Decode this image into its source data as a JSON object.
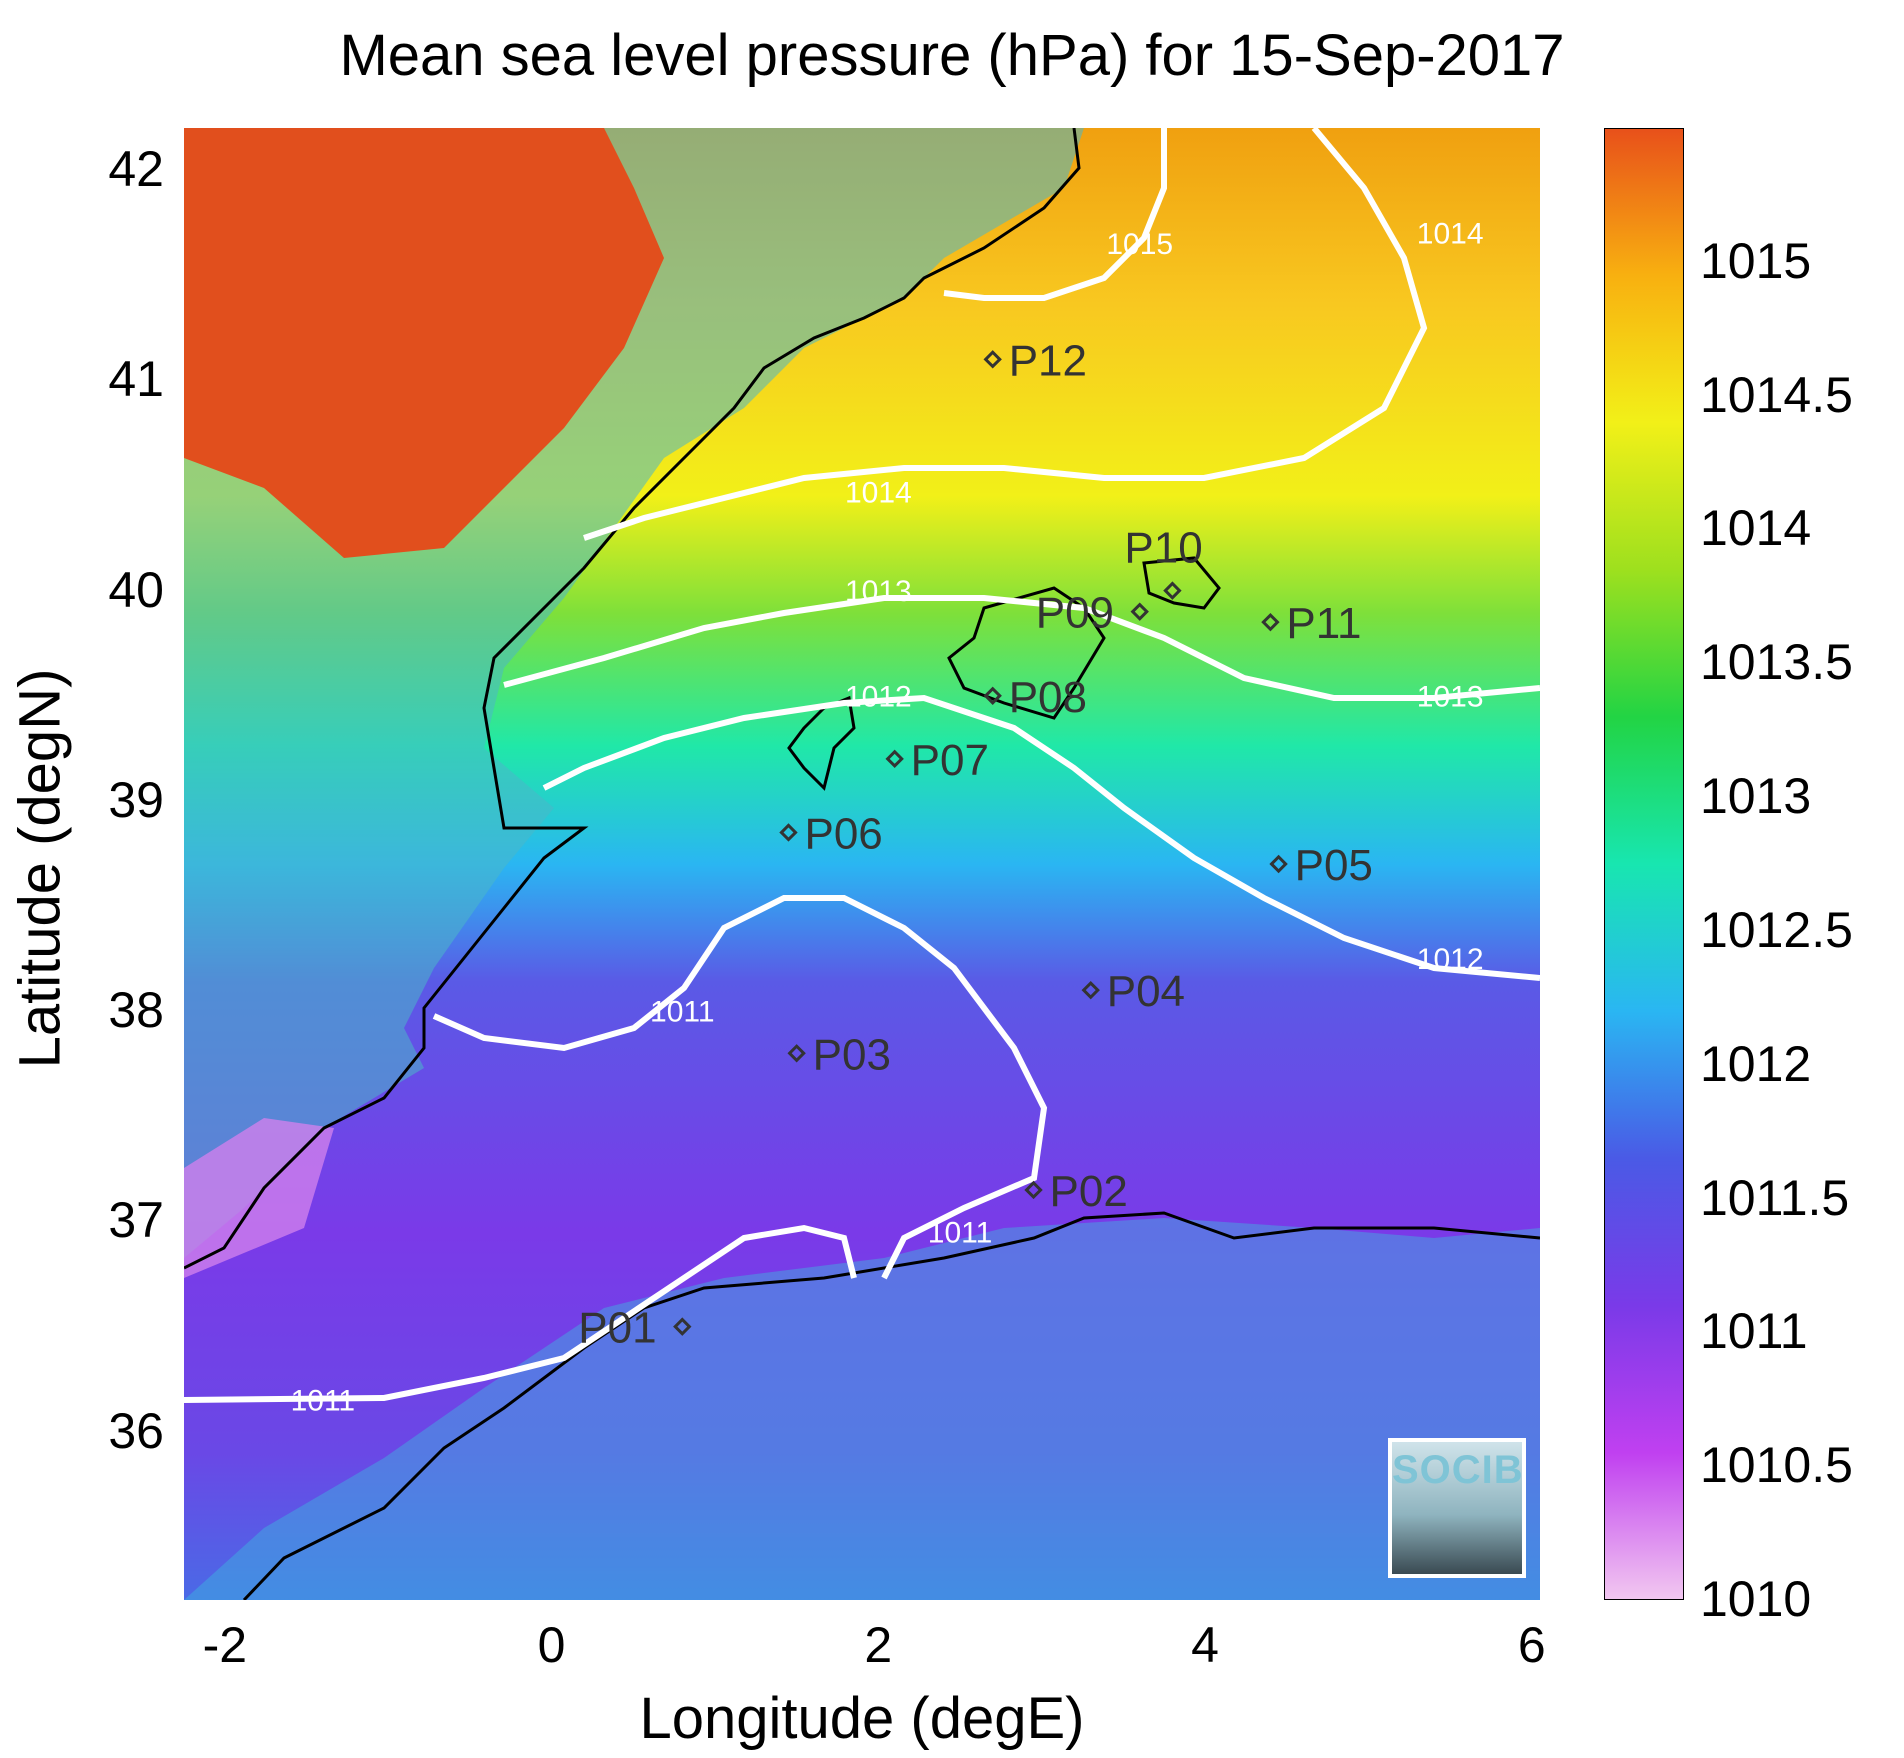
{
  "title": "Mean sea level pressure (hPa) for 15-Sep-2017",
  "chart_data": {
    "type": "heatmap",
    "title": "Mean sea level pressure (hPa) for 15-Sep-2017",
    "xlabel": "Longitude (degE)",
    "ylabel": "Latitude (degN)",
    "xlim": [
      -2.25,
      6.05
    ],
    "ylim": [
      35.2,
      42.2
    ],
    "xticks": [
      -2,
      0,
      2,
      4,
      6
    ],
    "yticks": [
      36,
      37,
      38,
      39,
      40,
      41,
      42
    ],
    "colorbar": {
      "range": [
        1010,
        1015.5
      ],
      "ticks": [
        1010,
        1010.5,
        1011,
        1011.5,
        1012,
        1012.5,
        1013,
        1013.5,
        1014,
        1014.5,
        1015
      ],
      "colors": [
        "#f2c8f0",
        "#c040f0",
        "#7a3ae8",
        "#4a5ae6",
        "#2ab6f2",
        "#18e6b0",
        "#22d444",
        "#9ee01e",
        "#f2f018",
        "#f8b010",
        "#e8501a"
      ]
    },
    "contour_levels": [
      1011,
      1012,
      1013,
      1014,
      1015
    ],
    "contour_labels": [
      {
        "text": "1011",
        "x": -1.4,
        "y": 36.1
      },
      {
        "text": "1011",
        "x": 0.8,
        "y": 37.95
      },
      {
        "text": "1011",
        "x": 2.5,
        "y": 36.9
      },
      {
        "text": "1012",
        "x": 2.0,
        "y": 39.45
      },
      {
        "text": "1012",
        "x": 5.5,
        "y": 38.2
      },
      {
        "text": "1013",
        "x": 2.0,
        "y": 39.95
      },
      {
        "text": "1013",
        "x": 5.5,
        "y": 39.45
      },
      {
        "text": "1014",
        "x": 2.0,
        "y": 40.42
      },
      {
        "text": "1014",
        "x": 5.5,
        "y": 41.65
      },
      {
        "text": "1015",
        "x": 3.6,
        "y": 41.6
      }
    ],
    "stations": [
      {
        "name": "P01",
        "lon": 0.8,
        "lat": 36.5
      },
      {
        "name": "P02",
        "lon": 2.95,
        "lat": 37.15
      },
      {
        "name": "P03",
        "lon": 1.5,
        "lat": 37.8
      },
      {
        "name": "P04",
        "lon": 3.3,
        "lat": 38.1
      },
      {
        "name": "P05",
        "lon": 4.45,
        "lat": 38.7
      },
      {
        "name": "P06",
        "lon": 1.45,
        "lat": 38.85
      },
      {
        "name": "P07",
        "lon": 2.1,
        "lat": 39.2
      },
      {
        "name": "P08",
        "lon": 2.7,
        "lat": 39.5
      },
      {
        "name": "P09",
        "lon": 3.6,
        "lat": 39.9
      },
      {
        "name": "P10",
        "lon": 3.8,
        "lat": 40.0
      },
      {
        "name": "P11",
        "lon": 4.4,
        "lat": 39.85
      },
      {
        "name": "P12",
        "lon": 2.7,
        "lat": 41.1
      }
    ]
  },
  "logo_text": "SOCIB"
}
